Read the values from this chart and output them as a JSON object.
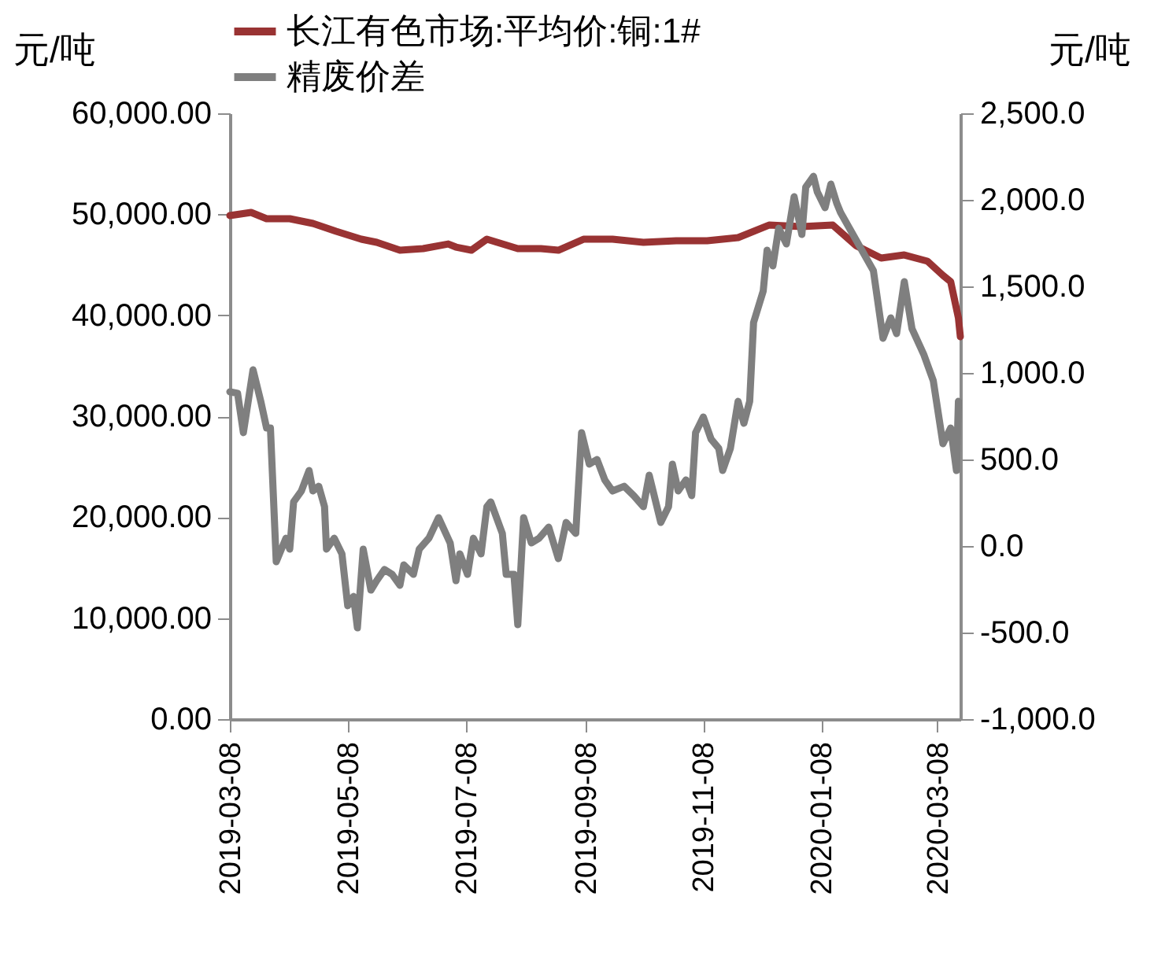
{
  "chart_data": {
    "type": "line",
    "ylabel": "元/吨",
    "y2label": "元/吨",
    "legend": "top",
    "grid": false,
    "marker": "none",
    "line_style": "solid",
    "xlim": [
      "2019-03-08",
      "2020-03-20"
    ],
    "xticks": [
      "2019-03-08",
      "2019-05-08",
      "2019-07-08",
      "2019-09-08",
      "2019-11-08",
      "2020-01-08",
      "2020-03-08"
    ],
    "ylim": [
      0,
      60000
    ],
    "yticks": [
      {
        "value": 0,
        "label": "0.00"
      },
      {
        "value": 10000,
        "label": "10,000.00"
      },
      {
        "value": 20000,
        "label": "20,000.00"
      },
      {
        "value": 30000,
        "label": "30,000.00"
      },
      {
        "value": 40000,
        "label": "40,000.00"
      },
      {
        "value": 50000,
        "label": "50,000.00"
      },
      {
        "value": 60000,
        "label": "60,000.00"
      }
    ],
    "y2lim": [
      -1000,
      2500
    ],
    "y2ticks": [
      {
        "value": -1000,
        "label": "-1,000.0"
      },
      {
        "value": -500,
        "label": "-500.0"
      },
      {
        "value": 0,
        "label": "0.0"
      },
      {
        "value": 500,
        "label": "500.0"
      },
      {
        "value": 1000,
        "label": "1,000.0"
      },
      {
        "value": 1500,
        "label": "1,500.0"
      },
      {
        "value": 2000,
        "label": "2,000.0"
      },
      {
        "value": 2500,
        "label": "2,500.0"
      }
    ],
    "series": [
      {
        "name": "长江有色市场:平均价:铜:1#",
        "color": "#993333",
        "x": [
          "2019-03-08",
          "2019-03-19",
          "2019-03-27",
          "2019-04-08",
          "2019-04-20",
          "2019-05-02",
          "2019-05-15",
          "2019-05-23",
          "2019-06-04",
          "2019-06-16",
          "2019-06-29",
          "2019-07-03",
          "2019-07-11",
          "2019-07-19",
          "2019-07-27",
          "2019-08-04",
          "2019-08-16",
          "2019-08-25",
          "2019-09-07",
          "2019-09-22",
          "2019-10-08",
          "2019-10-25",
          "2019-11-10",
          "2019-11-26",
          "2019-12-12",
          "2019-12-29",
          "2020-01-14",
          "2020-01-26",
          "2020-02-08",
          "2020-02-20",
          "2020-03-03",
          "2020-03-11",
          "2020-03-15",
          "2020-03-19",
          "2020-03-20"
        ],
        "values": [
          49870,
          50180,
          49560,
          49560,
          49090,
          48310,
          47530,
          47220,
          46440,
          46600,
          47060,
          46750,
          46440,
          47530,
          47060,
          46600,
          46600,
          46440,
          47530,
          47530,
          47220,
          47370,
          47370,
          47690,
          48930,
          48770,
          48930,
          46900,
          45660,
          45970,
          45350,
          43950,
          43320,
          39740,
          37870
        ]
      },
      {
        "name": "精废价差",
        "color": "#7f7f7f",
        "axis": "y2",
        "x": [
          "2019-03-08",
          "2019-03-12",
          "2019-03-15",
          "2019-03-20",
          "2019-03-24",
          "2019-03-27",
          "2019-03-29",
          "2019-04-01",
          "2019-04-06",
          "2019-04-08",
          "2019-04-10",
          "2019-04-14",
          "2019-04-18",
          "2019-04-20",
          "2019-04-23",
          "2019-04-26",
          "2019-04-27",
          "2019-05-01",
          "2019-05-05",
          "2019-05-08",
          "2019-05-11",
          "2019-05-13",
          "2019-05-16",
          "2019-05-20",
          "2019-05-23",
          "2019-05-27",
          "2019-05-31",
          "2019-06-04",
          "2019-06-06",
          "2019-06-11",
          "2019-06-14",
          "2019-06-19",
          "2019-06-24",
          "2019-06-30",
          "2019-07-03",
          "2019-07-05",
          "2019-07-09",
          "2019-07-12",
          "2019-07-16",
          "2019-07-19",
          "2019-07-21",
          "2019-07-27",
          "2019-07-29",
          "2019-08-02",
          "2019-08-04",
          "2019-08-07",
          "2019-08-11",
          "2019-08-15",
          "2019-08-20",
          "2019-08-25",
          "2019-08-29",
          "2019-09-03",
          "2019-09-06",
          "2019-09-10",
          "2019-09-14",
          "2019-09-18",
          "2019-09-22",
          "2019-09-28",
          "2019-10-03",
          "2019-10-08",
          "2019-10-11",
          "2019-10-17",
          "2019-10-21",
          "2019-10-23",
          "2019-10-26",
          "2019-10-30",
          "2019-11-02",
          "2019-11-04",
          "2019-11-08",
          "2019-11-12",
          "2019-11-16",
          "2019-11-18",
          "2019-11-22",
          "2019-11-26",
          "2019-11-29",
          "2019-12-02",
          "2019-12-04",
          "2019-12-09",
          "2019-12-11",
          "2019-12-14",
          "2019-12-17",
          "2019-12-21",
          "2019-12-25",
          "2019-12-29",
          "2019-12-31",
          "2020-01-04",
          "2020-01-06",
          "2020-01-10",
          "2020-01-13",
          "2020-01-16",
          "2020-01-18",
          "2020-02-04",
          "2020-02-09",
          "2020-02-13",
          "2020-02-16",
          "2020-02-20",
          "2020-02-24",
          "2020-03-01",
          "2020-03-06",
          "2020-03-11",
          "2020-03-15",
          "2020-03-18",
          "2020-03-19"
        ],
        "values": [
          891,
          882,
          655,
          1018,
          836,
          682,
          682,
          -91,
          45,
          -18,
          255,
          318,
          436,
          318,
          345,
          227,
          -18,
          45,
          -45,
          -345,
          -291,
          -473,
          -18,
          -255,
          -200,
          -136,
          -164,
          -227,
          -109,
          -164,
          -18,
          45,
          164,
          18,
          -200,
          -45,
          -164,
          45,
          -45,
          227,
          255,
          73,
          -164,
          -164,
          -455,
          164,
          18,
          45,
          109,
          -73,
          136,
          73,
          655,
          473,
          500,
          382,
          318,
          345,
          291,
          227,
          409,
          136,
          227,
          473,
          318,
          382,
          291,
          655,
          745,
          618,
          564,
          436,
          564,
          836,
          709,
          836,
          1291,
          1473,
          1709,
          1618,
          1836,
          1745,
          2018,
          1800,
          2073,
          2136,
          2045,
          1955,
          2091,
          1982,
          1927,
          1591,
          1200,
          1318,
          1227,
          1527,
          1255,
          1109,
          955,
          591,
          682,
          436,
          836
        ]
      }
    ]
  }
}
